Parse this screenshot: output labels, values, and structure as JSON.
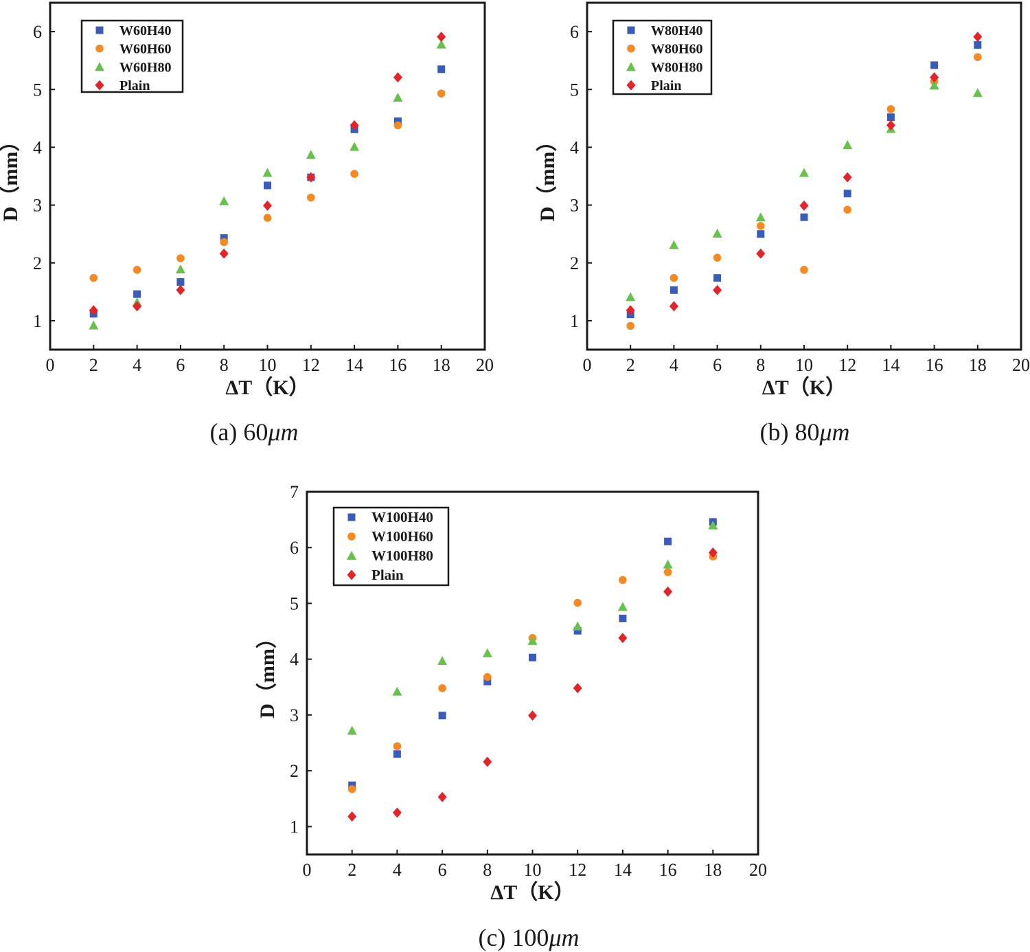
{
  "colors": {
    "blue": "#3a5bb8",
    "orange": "#f28a26",
    "green": "#6ac04e",
    "red": "#e0262a"
  },
  "chart_data": [
    {
      "type": "scatter",
      "caption_prefix": "(a) 60",
      "caption_unit": "μm",
      "xlabel": "ΔT（K）",
      "ylabel": "D（mm）",
      "xlim": [
        0,
        20
      ],
      "ylim": [
        0.5,
        6.5
      ],
      "xticks": [
        0,
        2,
        4,
        6,
        8,
        10,
        12,
        14,
        16,
        18,
        20
      ],
      "yticks": [
        1,
        2,
        3,
        4,
        5,
        6
      ],
      "legend_position": "top-left",
      "x": [
        2,
        4,
        6,
        8,
        10,
        12,
        14,
        16,
        18
      ],
      "series": [
        {
          "name": "W60H40",
          "marker": "square",
          "color": "blue",
          "values": [
            1.12,
            1.46,
            1.67,
            2.43,
            3.34,
            3.48,
            4.31,
            4.45,
            5.35
          ]
        },
        {
          "name": "W60H60",
          "marker": "circle",
          "color": "orange",
          "values": [
            1.74,
            1.88,
            2.08,
            2.36,
            2.78,
            3.13,
            3.54,
            4.38,
            4.93
          ]
        },
        {
          "name": "W60H80",
          "marker": "triangle",
          "color": "green",
          "values": [
            0.92,
            1.32,
            1.89,
            3.07,
            3.56,
            3.87,
            4.01,
            4.86,
            5.78
          ]
        },
        {
          "name": "Plain",
          "marker": "diamond",
          "color": "red",
          "values": [
            1.18,
            1.25,
            1.53,
            2.16,
            2.99,
            3.48,
            4.38,
            5.21,
            5.91
          ]
        }
      ]
    },
    {
      "type": "scatter",
      "caption_prefix": "(b) 80",
      "caption_unit": "μm",
      "xlabel": "ΔT（K）",
      "ylabel": "D（mm）",
      "xlim": [
        0,
        20
      ],
      "ylim": [
        0.5,
        6.5
      ],
      "xticks": [
        0,
        2,
        4,
        6,
        8,
        10,
        12,
        14,
        16,
        18,
        20
      ],
      "yticks": [
        1,
        2,
        3,
        4,
        5,
        6
      ],
      "legend_position": "top-left",
      "x": [
        2,
        4,
        6,
        8,
        10,
        12,
        14,
        16,
        18
      ],
      "series": [
        {
          "name": "W80H40",
          "marker": "square",
          "color": "blue",
          "values": [
            1.11,
            1.53,
            1.74,
            2.5,
            2.79,
            3.2,
            4.52,
            5.42,
            5.77
          ]
        },
        {
          "name": "W80H60",
          "marker": "circle",
          "color": "orange",
          "values": [
            0.91,
            1.74,
            2.09,
            2.64,
            1.88,
            2.92,
            4.66,
            5.14,
            5.56
          ]
        },
        {
          "name": "W80H80",
          "marker": "triangle",
          "color": "green",
          "values": [
            1.41,
            2.31,
            2.51,
            2.79,
            3.56,
            4.04,
            4.32,
            5.07,
            4.94
          ]
        },
        {
          "name": "Plain",
          "marker": "diamond",
          "color": "red",
          "values": [
            1.18,
            1.25,
            1.53,
            2.16,
            2.99,
            3.48,
            4.38,
            5.21,
            5.91
          ]
        }
      ]
    },
    {
      "type": "scatter",
      "caption_prefix": "(c) 100",
      "caption_unit": "μm",
      "xlabel": "ΔT（K）",
      "ylabel": "D（mm）",
      "xlim": [
        0,
        20
      ],
      "ylim": [
        0.5,
        7
      ],
      "xticks": [
        0,
        2,
        4,
        6,
        8,
        10,
        12,
        14,
        16,
        18,
        20
      ],
      "yticks": [
        1,
        2,
        3,
        4,
        5,
        6,
        7
      ],
      "legend_position": "top-left",
      "x": [
        2,
        4,
        6,
        8,
        10,
        12,
        14,
        16,
        18
      ],
      "series": [
        {
          "name": "W100H40",
          "marker": "square",
          "color": "blue",
          "values": [
            1.74,
            2.3,
            2.99,
            3.6,
            4.03,
            4.51,
            4.73,
            6.11,
            6.46
          ]
        },
        {
          "name": "W100H60",
          "marker": "circle",
          "color": "orange",
          "values": [
            1.67,
            2.44,
            3.48,
            3.68,
            4.38,
            5.01,
            5.42,
            5.56,
            5.84
          ]
        },
        {
          "name": "W100H80",
          "marker": "triangle",
          "color": "green",
          "values": [
            2.72,
            3.42,
            3.97,
            4.11,
            4.33,
            4.59,
            4.94,
            5.7,
            6.4
          ]
        },
        {
          "name": "Plain",
          "marker": "diamond",
          "color": "red",
          "values": [
            1.18,
            1.25,
            1.53,
            2.16,
            2.99,
            3.48,
            4.38,
            5.21,
            5.91
          ]
        }
      ]
    }
  ]
}
